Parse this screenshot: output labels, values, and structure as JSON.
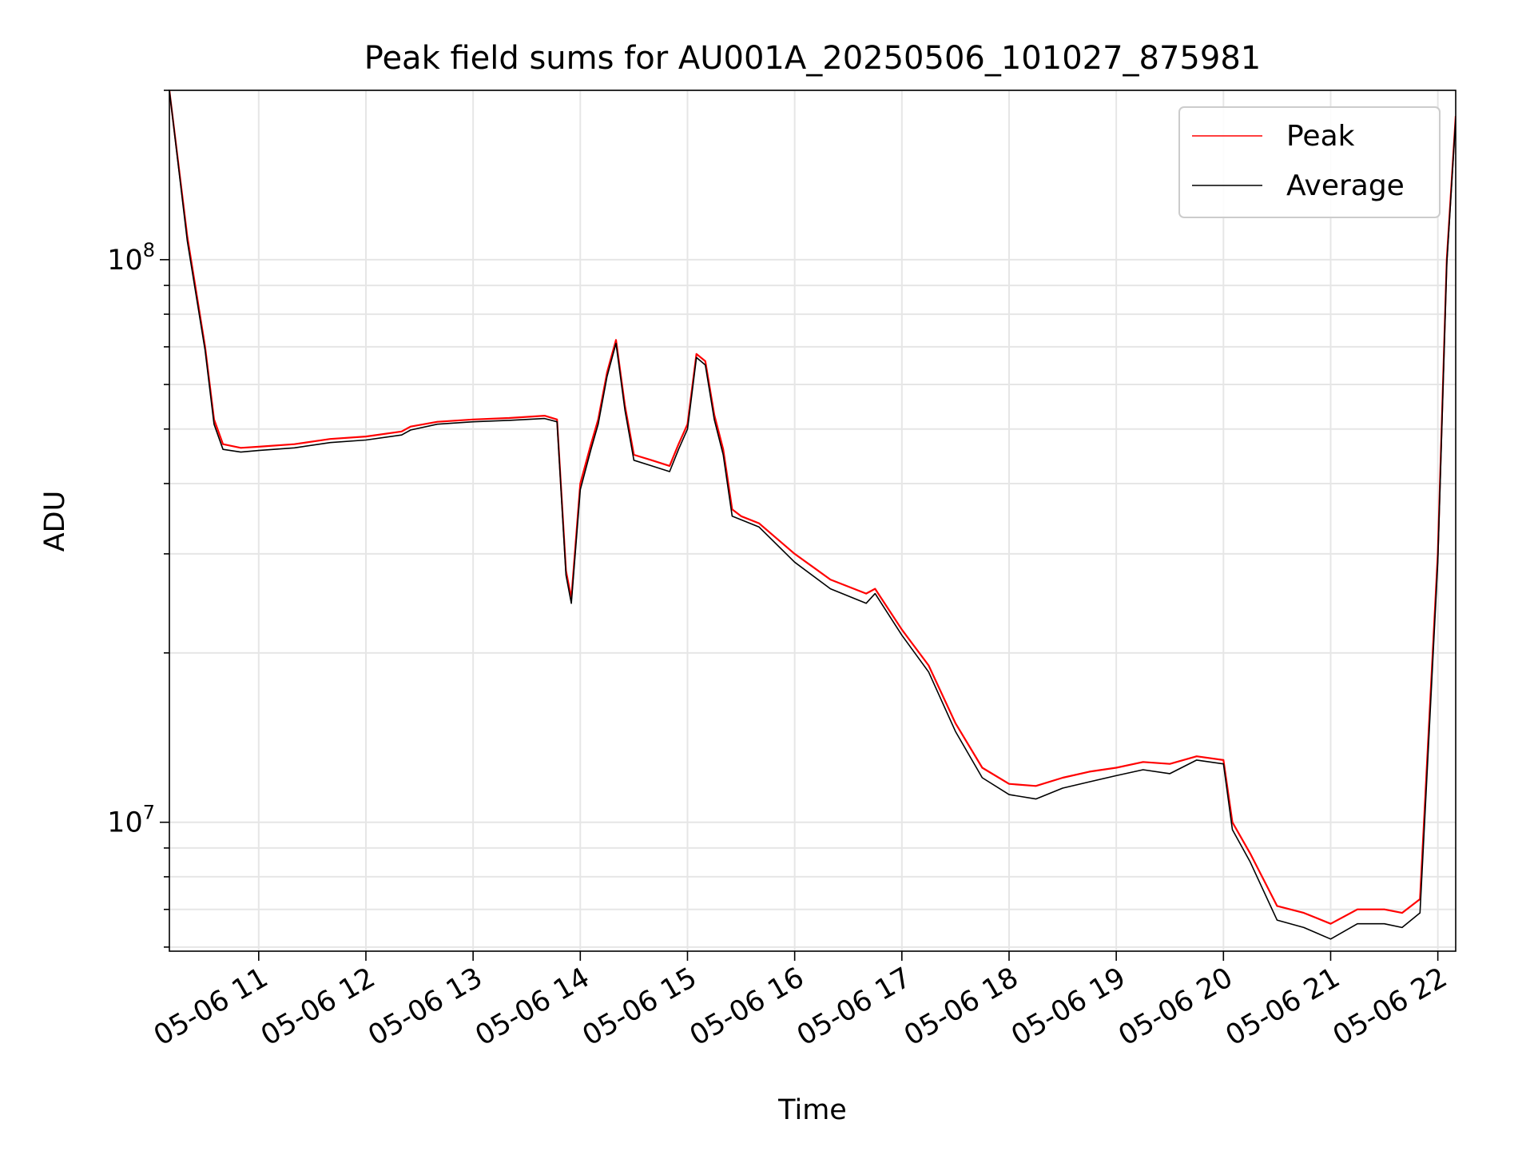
{
  "chart_data": {
    "type": "line",
    "title": "Peak field sums for AU001A_20250506_101027_875981",
    "xlabel": "Time",
    "ylabel": "ADU",
    "x_axis": {
      "kind": "datetime",
      "range": [
        "2025-05-06 10:10",
        "2025-05-06 22:10"
      ],
      "ticks": [
        "2025-05-06 11:00",
        "2025-05-06 12:00",
        "2025-05-06 13:00",
        "2025-05-06 14:00",
        "2025-05-06 15:00",
        "2025-05-06 16:00",
        "2025-05-06 17:00",
        "2025-05-06 18:00",
        "2025-05-06 19:00",
        "2025-05-06 20:00",
        "2025-05-06 21:00",
        "2025-05-06 22:00"
      ],
      "tick_labels": [
        "05-06 11",
        "05-06 12",
        "05-06 13",
        "05-06 14",
        "05-06 15",
        "05-06 16",
        "05-06 17",
        "05-06 18",
        "05-06 19",
        "05-06 20",
        "05-06 21",
        "05-06 22"
      ]
    },
    "y_axis": {
      "scale": "log",
      "range": [
        5900000,
        200000000
      ],
      "major_ticks": [
        10000000,
        100000000
      ],
      "major_tick_labels": [
        {
          "base": "10",
          "exp": "7"
        },
        {
          "base": "10",
          "exp": "8"
        }
      ]
    },
    "grid": true,
    "legend": {
      "position": "top-right",
      "entries": [
        "Peak",
        "Average"
      ]
    },
    "series": [
      {
        "name": "Peak",
        "color": "#ff0000",
        "x": [
          "2025-05-06 10:10",
          "2025-05-06 10:20",
          "2025-05-06 10:30",
          "2025-05-06 10:35",
          "2025-05-06 10:40",
          "2025-05-06 10:50",
          "2025-05-06 11:00",
          "2025-05-06 11:20",
          "2025-05-06 11:40",
          "2025-05-06 12:00",
          "2025-05-06 12:20",
          "2025-05-06 12:25",
          "2025-05-06 12:40",
          "2025-05-06 13:00",
          "2025-05-06 13:20",
          "2025-05-06 13:40",
          "2025-05-06 13:47",
          "2025-05-06 13:52",
          "2025-05-06 13:55",
          "2025-05-06 14:00",
          "2025-05-06 14:06",
          "2025-05-06 14:10",
          "2025-05-06 14:15",
          "2025-05-06 14:20",
          "2025-05-06 14:25",
          "2025-05-06 14:30",
          "2025-05-06 14:40",
          "2025-05-06 14:50",
          "2025-05-06 14:55",
          "2025-05-06 15:00",
          "2025-05-06 15:05",
          "2025-05-06 15:10",
          "2025-05-06 15:15",
          "2025-05-06 15:20",
          "2025-05-06 15:25",
          "2025-05-06 15:30",
          "2025-05-06 15:40",
          "2025-05-06 16:00",
          "2025-05-06 16:20",
          "2025-05-06 16:40",
          "2025-05-06 16:45",
          "2025-05-06 17:00",
          "2025-05-06 17:15",
          "2025-05-06 17:30",
          "2025-05-06 17:45",
          "2025-05-06 18:00",
          "2025-05-06 18:15",
          "2025-05-06 18:30",
          "2025-05-06 18:45",
          "2025-05-06 19:00",
          "2025-05-06 19:15",
          "2025-05-06 19:30",
          "2025-05-06 19:45",
          "2025-05-06 20:00",
          "2025-05-06 20:05",
          "2025-05-06 20:15",
          "2025-05-06 20:30",
          "2025-05-06 20:45",
          "2025-05-06 21:00",
          "2025-05-06 21:15",
          "2025-05-06 21:30",
          "2025-05-06 21:40",
          "2025-05-06 21:50",
          "2025-05-06 22:00",
          "2025-05-06 22:05",
          "2025-05-06 22:10"
        ],
        "y": [
          200000000,
          110000000,
          70000000,
          52000000,
          47000000,
          46300000,
          46500000,
          47000000,
          48000000,
          48500000,
          49500000,
          50500000,
          51500000,
          52000000,
          52300000,
          52800000,
          52000000,
          28000000,
          25000000,
          40000000,
          47000000,
          52000000,
          63000000,
          72000000,
          55000000,
          45000000,
          44000000,
          43000000,
          47000000,
          51000000,
          68000000,
          66000000,
          53000000,
          46000000,
          36000000,
          35000000,
          34000000,
          30000000,
          27000000,
          25500000,
          26000000,
          22000000,
          19000000,
          15000000,
          12500000,
          11700000,
          11600000,
          12000000,
          12300000,
          12500000,
          12800000,
          12700000,
          13100000,
          12900000,
          10000000,
          8800000,
          7100000,
          6900000,
          6600000,
          7000000,
          7000000,
          6900000,
          7300000,
          30000000,
          100000000,
          180000000
        ]
      },
      {
        "name": "Average",
        "color": "#000000",
        "x": [
          "2025-05-06 10:10",
          "2025-05-06 10:20",
          "2025-05-06 10:30",
          "2025-05-06 10:35",
          "2025-05-06 10:40",
          "2025-05-06 10:50",
          "2025-05-06 11:00",
          "2025-05-06 11:20",
          "2025-05-06 11:40",
          "2025-05-06 12:00",
          "2025-05-06 12:20",
          "2025-05-06 12:25",
          "2025-05-06 12:40",
          "2025-05-06 13:00",
          "2025-05-06 13:20",
          "2025-05-06 13:40",
          "2025-05-06 13:47",
          "2025-05-06 13:52",
          "2025-05-06 13:55",
          "2025-05-06 14:00",
          "2025-05-06 14:06",
          "2025-05-06 14:10",
          "2025-05-06 14:15",
          "2025-05-06 14:20",
          "2025-05-06 14:25",
          "2025-05-06 14:30",
          "2025-05-06 14:40",
          "2025-05-06 14:50",
          "2025-05-06 14:55",
          "2025-05-06 15:00",
          "2025-05-06 15:05",
          "2025-05-06 15:10",
          "2025-05-06 15:15",
          "2025-05-06 15:20",
          "2025-05-06 15:25",
          "2025-05-06 15:30",
          "2025-05-06 15:40",
          "2025-05-06 16:00",
          "2025-05-06 16:20",
          "2025-05-06 16:40",
          "2025-05-06 16:45",
          "2025-05-06 17:00",
          "2025-05-06 17:15",
          "2025-05-06 17:30",
          "2025-05-06 17:45",
          "2025-05-06 18:00",
          "2025-05-06 18:15",
          "2025-05-06 18:30",
          "2025-05-06 18:45",
          "2025-05-06 19:00",
          "2025-05-06 19:15",
          "2025-05-06 19:30",
          "2025-05-06 19:45",
          "2025-05-06 20:00",
          "2025-05-06 20:05",
          "2025-05-06 20:15",
          "2025-05-06 20:30",
          "2025-05-06 20:45",
          "2025-05-06 21:00",
          "2025-05-06 21:15",
          "2025-05-06 21:30",
          "2025-05-06 21:40",
          "2025-05-06 21:50",
          "2025-05-06 22:00",
          "2025-05-06 22:05",
          "2025-05-06 22:10"
        ],
        "y": [
          200000000,
          108000000,
          69000000,
          51000000,
          46000000,
          45500000,
          45800000,
          46300000,
          47300000,
          47800000,
          48800000,
          49800000,
          51000000,
          51500000,
          51800000,
          52200000,
          51500000,
          27500000,
          24500000,
          39000000,
          46000000,
          51000000,
          62000000,
          71000000,
          54000000,
          44000000,
          43000000,
          42000000,
          46000000,
          50000000,
          67000000,
          65000000,
          52000000,
          45000000,
          35000000,
          34500000,
          33500000,
          29000000,
          26000000,
          24500000,
          25500000,
          21500000,
          18500000,
          14500000,
          12000000,
          11200000,
          11000000,
          11500000,
          11800000,
          12100000,
          12400000,
          12200000,
          12900000,
          12700000,
          9700000,
          8500000,
          6700000,
          6500000,
          6200000,
          6600000,
          6600000,
          6500000,
          6900000,
          29000000,
          98000000,
          178000000
        ]
      }
    ]
  }
}
